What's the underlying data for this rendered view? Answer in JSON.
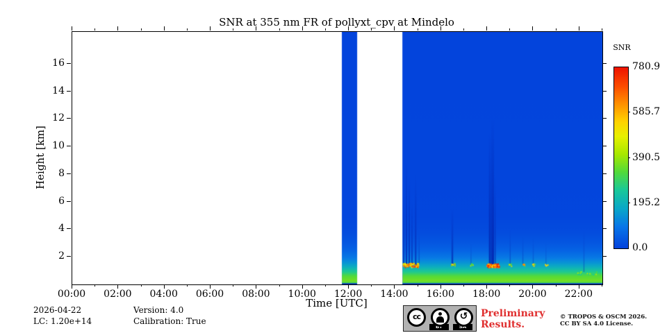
{
  "title": "SNR at 355 nm FR of pollyxt_cpv at Mindelo",
  "axes": {
    "x": {
      "label": "Time [UTC]",
      "min_hours": 0,
      "max_hours": 23,
      "major_tick_labels": [
        "00:00",
        "02:00",
        "04:00",
        "06:00",
        "08:00",
        "10:00",
        "12:00",
        "14:00",
        "16:00",
        "18:00",
        "20:00",
        "22:00"
      ],
      "major_tick_hours": [
        0,
        2,
        4,
        6,
        8,
        10,
        12,
        14,
        16,
        18,
        20,
        22
      ],
      "minor_tick_step_hours": 1
    },
    "y": {
      "label": "Height [km]",
      "min_km": 0,
      "max_km": 18.3,
      "major_tick_labels": [
        "2",
        "4",
        "6",
        "8",
        "10",
        "12",
        "14",
        "16"
      ],
      "major_tick_km": [
        2,
        4,
        6,
        8,
        10,
        12,
        14,
        16
      ]
    }
  },
  "colorbar": {
    "title": "SNR",
    "tick_labels": [
      "780.9",
      "585.7",
      "390.5",
      "195.2",
      "0.0"
    ],
    "tick_values": [
      780.9,
      585.7,
      390.5,
      195.2,
      0.0
    ]
  },
  "footer": {
    "date": "2026-04-22",
    "lc": "LC: 1.20e+14",
    "version": "Version: 4.0",
    "calibration": "Calibration: True",
    "preliminary_line1": "Preliminary",
    "preliminary_line2": "Results.",
    "copyright_line1": "© TROPOS & OSCM 2026.",
    "copyright_line2": "CC BY SA 4.0 License.",
    "cc_text": "cc",
    "cc_by": "BY",
    "cc_sa": "SA",
    "sa_glyph": "↺"
  },
  "chart_data": {
    "type": "heatmap",
    "title": "SNR at 355 nm FR of pollyxt_cpv at Mindelo",
    "xlabel": "Time [UTC]",
    "ylabel": "Height [km]",
    "value_label": "SNR",
    "xlim_hours": [
      0,
      23
    ],
    "ylim_km": [
      0,
      18.3
    ],
    "vmin": 0.0,
    "vmax": 780.9,
    "background_color_no_data": "#ffffff",
    "base_blue": "#0343dc",
    "near_ground_dark_blue": "#0a37b4",
    "colormap_stops": [
      [
        0.0,
        "#0343dc"
      ],
      [
        0.12,
        "#0877e8"
      ],
      [
        0.22,
        "#09a8c8"
      ],
      [
        0.32,
        "#19c89a"
      ],
      [
        0.42,
        "#52da3b"
      ],
      [
        0.52,
        "#a8e800"
      ],
      [
        0.62,
        "#e8f000"
      ],
      [
        0.7,
        "#ffd300"
      ],
      [
        0.8,
        "#ff9000"
      ],
      [
        0.9,
        "#fc4a00"
      ],
      [
        1.0,
        "#ee1500"
      ]
    ],
    "time_segments_hours": [
      {
        "start": 11.7,
        "end": 12.36
      },
      {
        "start": 14.33,
        "end": 23.0
      }
    ],
    "snr_profile_height_km_vs_snr": [
      [
        0.0,
        60
      ],
      [
        0.08,
        300
      ],
      [
        0.25,
        360
      ],
      [
        0.6,
        330
      ],
      [
        0.9,
        260
      ],
      [
        1.2,
        200
      ],
      [
        1.5,
        150
      ],
      [
        1.9,
        100
      ],
      [
        2.4,
        62
      ],
      [
        3.0,
        36
      ],
      [
        3.8,
        16
      ],
      [
        5.0,
        5
      ],
      [
        18.3,
        2
      ]
    ],
    "ground_dark_layer_top_km": 0.09,
    "cloud_features": [
      {
        "t0": 14.33,
        "t1": 15.0,
        "h_km": 1.42,
        "dh_km": 0.15,
        "count": 70,
        "palette": [
          "#ff9000",
          "#ffd300",
          "#fc4a00",
          "#e8f000",
          "#c84a10"
        ]
      },
      {
        "t0": 16.42,
        "t1": 16.58,
        "h_km": 1.45,
        "dh_km": 0.1,
        "count": 12,
        "palette": [
          "#ff9000",
          "#ffd300",
          "#52da3b"
        ]
      },
      {
        "t0": 17.25,
        "t1": 17.4,
        "h_km": 1.45,
        "dh_km": 0.08,
        "count": 5,
        "palette": [
          "#52da3b",
          "#a8e800"
        ]
      },
      {
        "t0": 17.95,
        "t1": 18.5,
        "h_km": 1.4,
        "dh_km": 0.13,
        "count": 80,
        "palette": [
          "#ee1500",
          "#fc4a00",
          "#ff9000",
          "#ffd300"
        ]
      },
      {
        "t0": 18.92,
        "t1": 19.05,
        "h_km": 1.45,
        "dh_km": 0.08,
        "count": 6,
        "palette": [
          "#52da3b",
          "#ffd300"
        ]
      },
      {
        "t0": 19.5,
        "t1": 19.62,
        "h_km": 1.45,
        "dh_km": 0.08,
        "count": 5,
        "palette": [
          "#52da3b",
          "#ff9000"
        ]
      },
      {
        "t0": 19.95,
        "t1": 20.08,
        "h_km": 1.45,
        "dh_km": 0.08,
        "count": 5,
        "palette": [
          "#ffd300",
          "#52da3b"
        ]
      },
      {
        "t0": 20.5,
        "t1": 20.62,
        "h_km": 1.45,
        "dh_km": 0.08,
        "count": 4,
        "palette": [
          "#ffd300",
          "#ff9000"
        ]
      },
      {
        "t0": 21.9,
        "t1": 22.95,
        "h_km": 0.85,
        "dh_km": 0.12,
        "count": 22,
        "palette": [
          "#19c89a",
          "#52da3b",
          "#a8e800"
        ]
      }
    ],
    "attenuation_streaks": [
      {
        "t": 14.38,
        "w": 2,
        "base_km": 1.45,
        "top_km": 7.0,
        "alpha": 0.8
      },
      {
        "t": 14.5,
        "w": 2,
        "base_km": 1.45,
        "top_km": 9.0,
        "alpha": 0.9
      },
      {
        "t": 14.62,
        "w": 2,
        "base_km": 1.45,
        "top_km": 8.0,
        "alpha": 0.85
      },
      {
        "t": 14.74,
        "w": 2,
        "base_km": 1.45,
        "top_km": 6.0,
        "alpha": 0.7
      },
      {
        "t": 14.9,
        "w": 2,
        "base_km": 1.45,
        "top_km": 8.0,
        "alpha": 0.8
      },
      {
        "t": 15.05,
        "w": 1.5,
        "base_km": 1.45,
        "top_km": 4.0,
        "alpha": 0.5
      },
      {
        "t": 16.49,
        "w": 2.5,
        "base_km": 1.45,
        "top_km": 5.5,
        "alpha": 0.8
      },
      {
        "t": 17.3,
        "w": 1.5,
        "base_km": 1.45,
        "top_km": 3.0,
        "alpha": 0.4
      },
      {
        "t": 18.12,
        "w": 3,
        "base_km": 1.45,
        "top_km": 11.0,
        "alpha": 0.9
      },
      {
        "t": 18.24,
        "w": 4,
        "base_km": 1.45,
        "top_km": 12.0,
        "alpha": 0.95
      },
      {
        "t": 18.35,
        "w": 2,
        "base_km": 1.45,
        "top_km": 8.0,
        "alpha": 0.6
      },
      {
        "t": 19.0,
        "w": 1.5,
        "base_km": 1.45,
        "top_km": 4.0,
        "alpha": 0.5
      },
      {
        "t": 19.55,
        "w": 1.5,
        "base_km": 1.45,
        "top_km": 3.5,
        "alpha": 0.45
      },
      {
        "t": 20.0,
        "w": 1.5,
        "base_km": 1.45,
        "top_km": 3.5,
        "alpha": 0.4
      },
      {
        "t": 20.55,
        "w": 1.5,
        "base_km": 1.45,
        "top_km": 3.0,
        "alpha": 0.35
      },
      {
        "t": 22.2,
        "w": 1.5,
        "base_km": 0.9,
        "top_km": 4.0,
        "alpha": 0.45
      }
    ]
  }
}
